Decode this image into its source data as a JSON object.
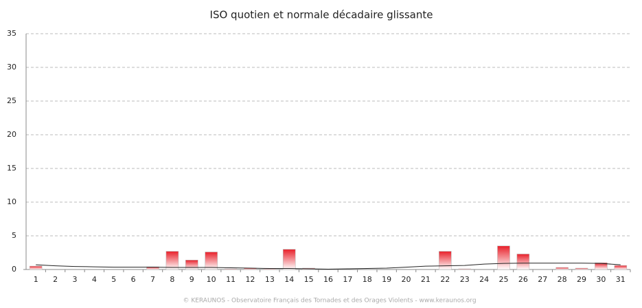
{
  "chart_data": {
    "type": "bar",
    "title": "ISO quotien et normale décadaire glissante",
    "categories": [
      "1",
      "2",
      "3",
      "4",
      "5",
      "6",
      "7",
      "8",
      "9",
      "10",
      "11",
      "12",
      "13",
      "14",
      "15",
      "16",
      "17",
      "18",
      "19",
      "20",
      "21",
      "22",
      "23",
      "24",
      "25",
      "26",
      "27",
      "28",
      "29",
      "30",
      "31"
    ],
    "series": [
      {
        "type": "bar",
        "color": "#e8202a",
        "values": [
          0.5,
          0,
          0,
          0,
          0,
          0,
          0.4,
          2.7,
          1.4,
          2.6,
          0.1,
          0.2,
          0.1,
          3.0,
          0.2,
          0,
          0,
          0,
          0,
          0,
          0,
          2.7,
          0.1,
          0,
          3.5,
          2.3,
          0,
          0.3,
          0.2,
          1.0,
          0.6
        ]
      },
      {
        "type": "line",
        "color": "#222222",
        "values": [
          0.7,
          0.55,
          0.45,
          0.4,
          0.35,
          0.35,
          0.35,
          0.3,
          0.3,
          0.3,
          0.25,
          0.2,
          0.15,
          0.15,
          0.1,
          0.05,
          0.1,
          0.15,
          0.2,
          0.35,
          0.5,
          0.55,
          0.6,
          0.8,
          0.9,
          0.95,
          0.95,
          0.95,
          0.95,
          0.9,
          0.7
        ]
      }
    ],
    "ylim": [
      0,
      35
    ],
    "yticks": [
      0,
      5,
      10,
      15,
      20,
      25,
      30,
      35
    ],
    "grid": true,
    "footer": "© KERAUNOS - Observatoire Français des Tornades et des Orages Violents - www.keraunos.org"
  }
}
